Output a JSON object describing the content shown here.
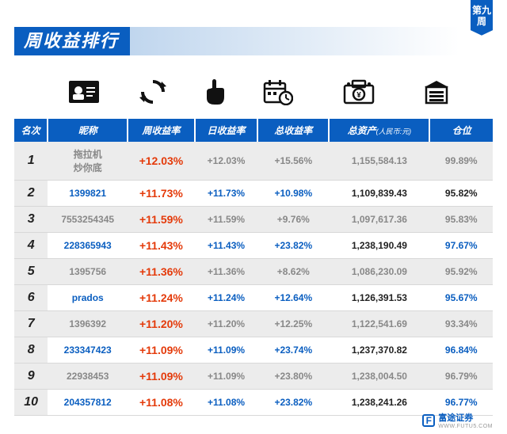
{
  "week_tag": "第九周",
  "title": "周收益排行",
  "columns": {
    "rank": "名次",
    "nick": "昵称",
    "week": "周收益率",
    "day": "日收益率",
    "total": "总收益率",
    "asset": "总资产",
    "asset_unit": "(人民币:元)",
    "pos": "仓位"
  },
  "rows": [
    {
      "rank": "1",
      "nick": "拖拉机\n炒你底",
      "nick_cls": "c-gray",
      "week": "+12.03%",
      "day": "+12.03%",
      "day_cls": "c-gray",
      "total": "+15.56%",
      "total_cls": "c-gray",
      "asset": "1,155,584.13",
      "asset_cls": "c-gray",
      "pos": "99.89%",
      "pos_cls": "c-gray",
      "shade": true
    },
    {
      "rank": "2",
      "nick": "1399821",
      "nick_cls": "c-blue",
      "week": "+11.73%",
      "day": "+11.73%",
      "day_cls": "c-blue",
      "total": "+10.98%",
      "total_cls": "c-blue",
      "asset": "1,109,839.43",
      "asset_cls": "c-black",
      "pos": "95.82%",
      "pos_cls": "c-black",
      "shade": false
    },
    {
      "rank": "3",
      "nick": "7553254345",
      "nick_cls": "c-gray",
      "week": "+11.59%",
      "day": "+11.59%",
      "day_cls": "c-gray",
      "total": "+9.76%",
      "total_cls": "c-gray",
      "asset": "1,097,617.36",
      "asset_cls": "c-gray",
      "pos": "95.83%",
      "pos_cls": "c-gray",
      "shade": true
    },
    {
      "rank": "4",
      "nick": "228365943",
      "nick_cls": "c-blue",
      "week": "+11.43%",
      "day": "+11.43%",
      "day_cls": "c-blue",
      "total": "+23.82%",
      "total_cls": "c-blue",
      "asset": "1,238,190.49",
      "asset_cls": "c-black",
      "pos": "97.67%",
      "pos_cls": "c-blue",
      "shade": false
    },
    {
      "rank": "5",
      "nick": "1395756",
      "nick_cls": "c-gray",
      "week": "+11.36%",
      "day": "+11.36%",
      "day_cls": "c-gray",
      "total": "+8.62%",
      "total_cls": "c-gray",
      "asset": "1,086,230.09",
      "asset_cls": "c-gray",
      "pos": "95.92%",
      "pos_cls": "c-gray",
      "shade": true
    },
    {
      "rank": "6",
      "nick": "prados",
      "nick_cls": "c-blue",
      "week": "+11.24%",
      "day": "+11.24%",
      "day_cls": "c-blue",
      "total": "+12.64%",
      "total_cls": "c-blue",
      "asset": "1,126,391.53",
      "asset_cls": "c-black",
      "pos": "95.67%",
      "pos_cls": "c-blue",
      "shade": false
    },
    {
      "rank": "7",
      "nick": "1396392",
      "nick_cls": "c-gray",
      "week": "+11.20%",
      "day": "+11.20%",
      "day_cls": "c-gray",
      "total": "+12.25%",
      "total_cls": "c-gray",
      "asset": "1,122,541.69",
      "asset_cls": "c-gray",
      "pos": "93.34%",
      "pos_cls": "c-gray",
      "shade": true
    },
    {
      "rank": "8",
      "nick": "233347423",
      "nick_cls": "c-blue",
      "week": "+11.09%",
      "day": "+11.09%",
      "day_cls": "c-blue",
      "total": "+23.74%",
      "total_cls": "c-blue",
      "asset": "1,237,370.82",
      "asset_cls": "c-black",
      "pos": "96.84%",
      "pos_cls": "c-blue",
      "shade": false
    },
    {
      "rank": "9",
      "nick": "22938453",
      "nick_cls": "c-gray",
      "week": "+11.09%",
      "day": "+11.09%",
      "day_cls": "c-gray",
      "total": "+23.80%",
      "total_cls": "c-gray",
      "asset": "1,238,004.50",
      "asset_cls": "c-gray",
      "pos": "96.79%",
      "pos_cls": "c-gray",
      "shade": true
    },
    {
      "rank": "10",
      "nick": "204357812",
      "nick_cls": "c-blue",
      "week": "+11.08%",
      "day": "+11.08%",
      "day_cls": "c-blue",
      "total": "+23.82%",
      "total_cls": "c-blue",
      "asset": "1,238,241.26",
      "asset_cls": "c-black",
      "pos": "96.77%",
      "pos_cls": "c-blue",
      "shade": false
    }
  ],
  "footer": {
    "brand": "富途证券",
    "sub": "WWW.FUTU5.COM",
    "logo": "F"
  }
}
